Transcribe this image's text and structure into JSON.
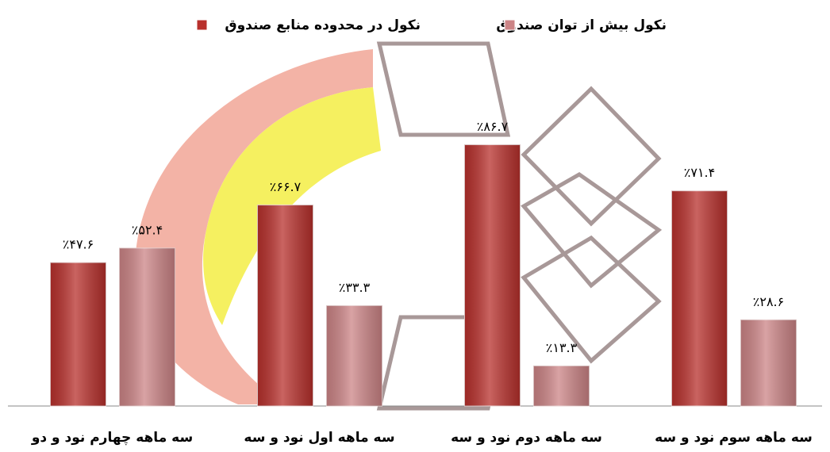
{
  "chart_data": {
    "type": "bar",
    "categories": [
      "سه ماهه چهارم نود و دو",
      "سه ماهه اول نود و سه",
      "سه ماهه دوم نود و سه",
      "سه ماهه سوم نود و سه"
    ],
    "series": [
      {
        "name": "نکول در محدوده منابع صندوق",
        "color": "#b8302c",
        "values": [
          47.6,
          66.7,
          86.7,
          71.4
        ],
        "value_labels": [
          "٪۴۷.۶",
          "٪۶۶.۷",
          "٪۸۶.۷",
          "٪۷۱.۴"
        ]
      },
      {
        "name": "نکول بیش از توان صندوق",
        "color": "#cc8486",
        "values": [
          52.4,
          33.3,
          13.3,
          28.6
        ],
        "value_labels": [
          "٪۵۲.۴",
          "٪۳۳.۳",
          "٪۱۳.۳",
          "٪۲۸.۶"
        ]
      }
    ],
    "ylim": [
      0,
      100
    ]
  }
}
